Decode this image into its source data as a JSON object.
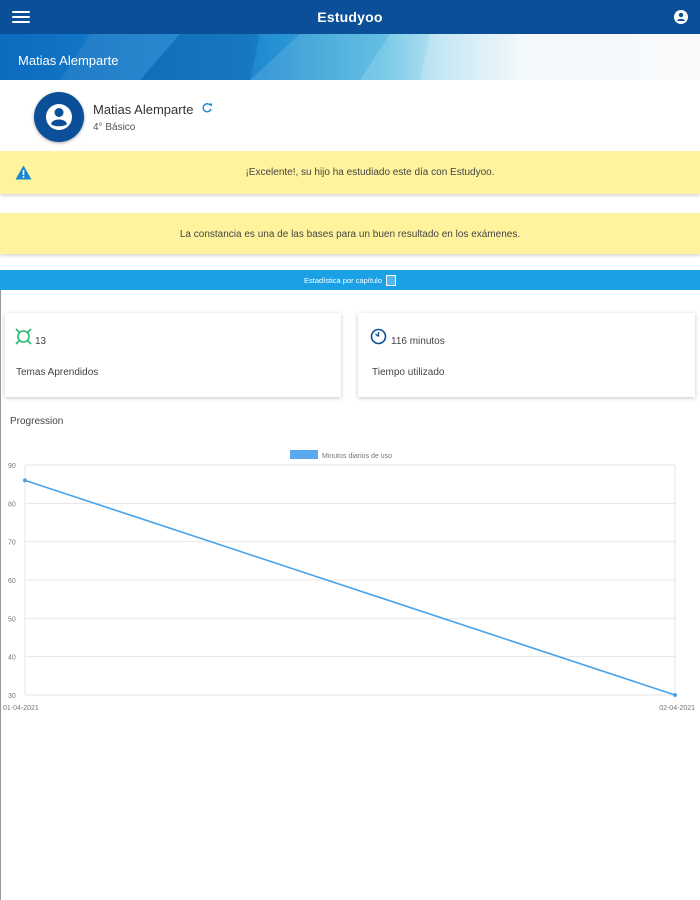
{
  "header": {
    "title": "Estudyoo",
    "menu_icon": "menu-icon",
    "account_icon": "account-icon"
  },
  "banner": {
    "student_name": "Matias Alemparte"
  },
  "profile": {
    "name": "Matias Alemparte",
    "grade": "4° Básico",
    "refresh_icon": "refresh-icon"
  },
  "notices": [
    {
      "text": "¡Excelente!, su hijo ha estudiado este día con Estudyoo.",
      "icon": "warning-icon"
    },
    {
      "text": "La constancia es una de las bases para un buen resultado en los exámenes."
    }
  ],
  "stats_bar": {
    "label": "Estadística por capítulo"
  },
  "cards": [
    {
      "value": "13",
      "label": "Temas Aprendidos",
      "icon": "target-icon"
    },
    {
      "value": "116 minutos",
      "label": "Tiempo utilizado",
      "icon": "clock-icon"
    }
  ],
  "progression": {
    "title": "Progression"
  },
  "colors": {
    "primary": "#0a4f98",
    "accent": "#1aa0e4",
    "notice": "#fff49d",
    "line": "#4aa3e8"
  },
  "chart_data": {
    "type": "line",
    "x": [
      "01-04-2021",
      "02-04-2021"
    ],
    "series": [
      {
        "name": "Minutos diarios de uso",
        "values": [
          86,
          30
        ]
      }
    ],
    "ylim": [
      30,
      90
    ],
    "yticks": [
      30,
      40,
      50,
      60,
      70,
      80,
      90
    ],
    "grid": true,
    "legend": "top"
  }
}
